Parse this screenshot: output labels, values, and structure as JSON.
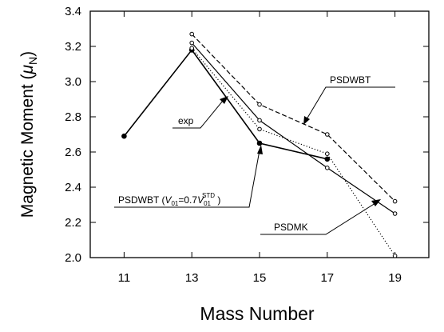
{
  "chart_data": {
    "type": "line",
    "title": "",
    "xlabel": "Mass Number",
    "ylabel": "Magnetic Moment (μN)",
    "ylabel_parts": {
      "main": "Magnetic Moment (",
      "symbol": "μ",
      "sub": "N",
      "close": ")"
    },
    "xlim": [
      10,
      20
    ],
    "ylim": [
      2.0,
      3.4
    ],
    "xticks": [
      11,
      13,
      15,
      17,
      19
    ],
    "yticks": [
      2.0,
      2.2,
      2.4,
      2.6,
      2.8,
      3.0,
      3.2,
      3.4
    ],
    "ytick_labels": [
      "2.0",
      "2.2",
      "2.4",
      "2.6",
      "2.8",
      "3.0",
      "3.2",
      "3.4"
    ],
    "grid": false,
    "series": [
      {
        "name": "exp",
        "style": "solid",
        "marker": "filled",
        "width": 1.6,
        "x": [
          11,
          13,
          15,
          17
        ],
        "y": [
          2.69,
          3.18,
          2.65,
          2.56
        ]
      },
      {
        "name": "PSDWBT",
        "style": "dashed",
        "marker": "open",
        "width": 1.2,
        "x": [
          13,
          15,
          17,
          19
        ],
        "y": [
          3.27,
          2.87,
          2.7,
          2.32
        ]
      },
      {
        "name": "PSDMK",
        "style": "solid",
        "marker": "open",
        "width": 1.2,
        "x": [
          13,
          15,
          17,
          19
        ],
        "y": [
          3.22,
          2.78,
          2.51,
          2.25
        ]
      },
      {
        "name": "PSDWBT (V01=0.7V01STD)",
        "style": "dotted",
        "marker": "open",
        "width": 1.2,
        "x": [
          13,
          15,
          17,
          19
        ],
        "y": [
          3.19,
          2.73,
          2.59,
          2.01
        ]
      }
    ],
    "annotations": {
      "exp": {
        "label": "exp"
      },
      "psdwbt": {
        "label": "PSDWBT"
      },
      "psdmk": {
        "label": "PSDMK"
      },
      "psdwbt_v": {
        "prefix": "PSDWBT (",
        "v1": "V",
        "v1sub": "01",
        "mid": "=0.7",
        "v2": "V",
        "v2sub": "01",
        "v2sup": "STD",
        "suffix": " )"
      }
    }
  }
}
